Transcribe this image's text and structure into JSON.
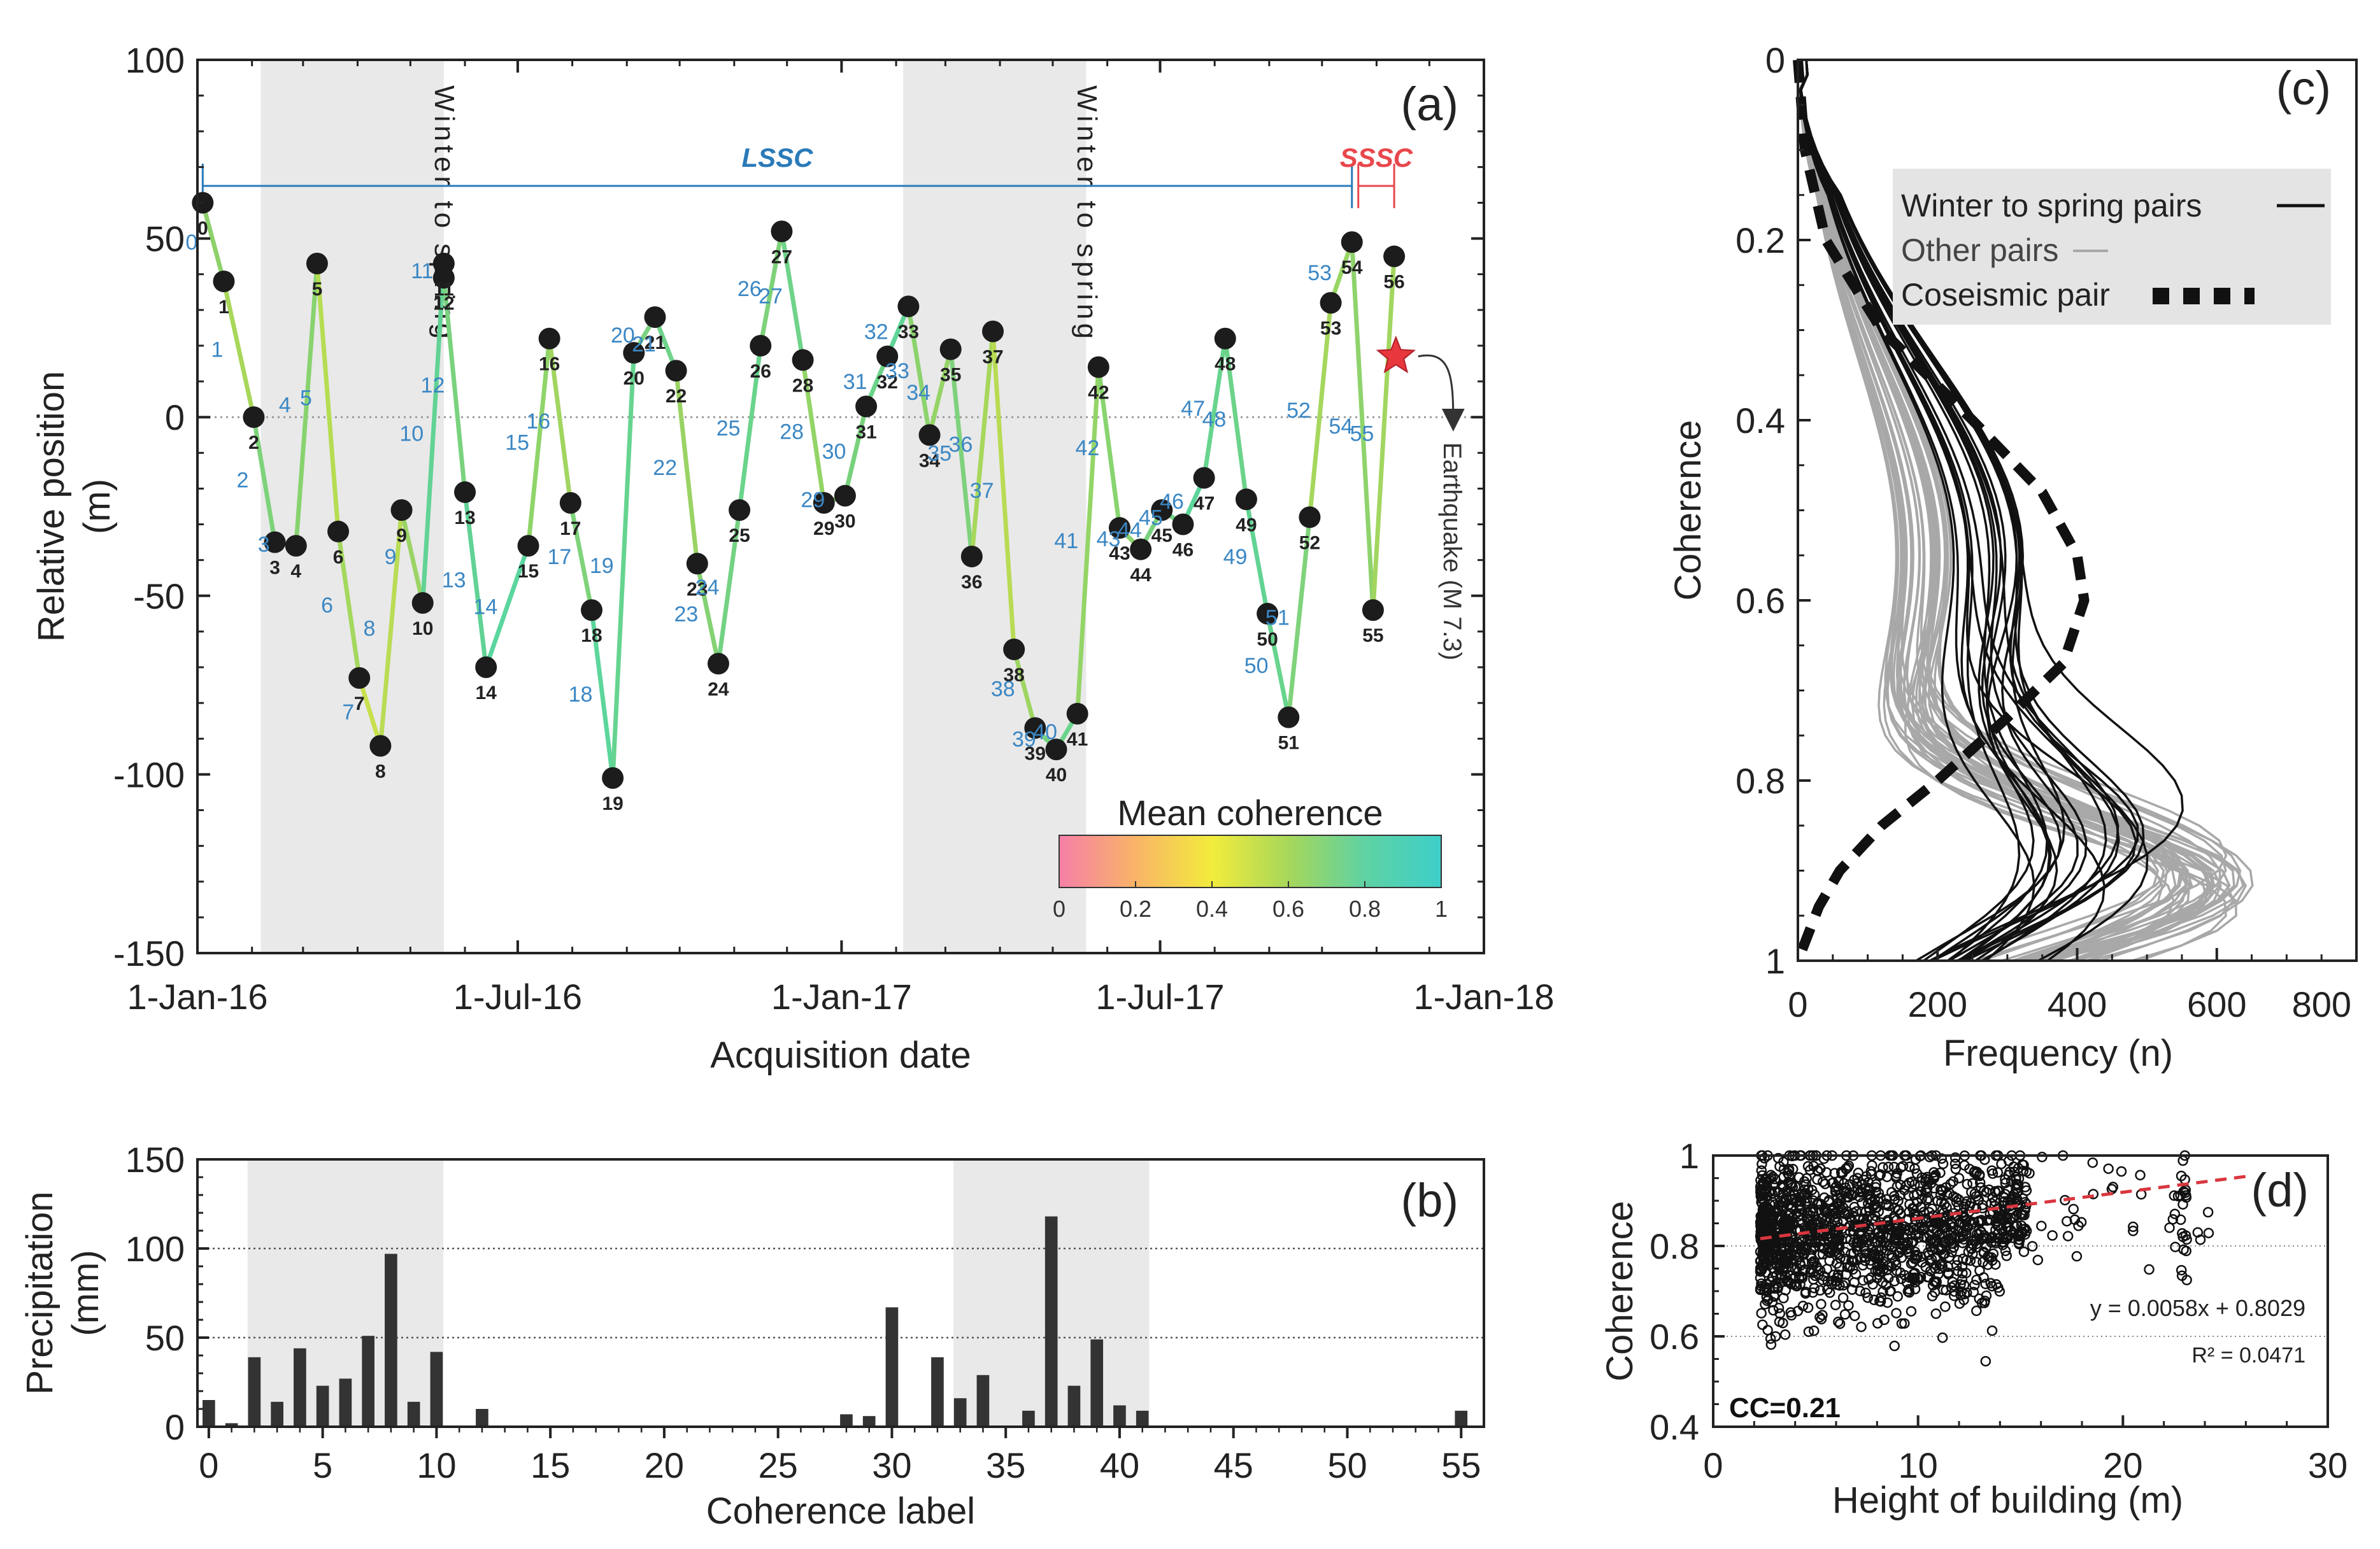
{
  "colors": {
    "winter_shade": "#e9e9e9",
    "lssc": "#2a7ab8",
    "sssc": "#e8474c",
    "label_blue": "#3b87c4",
    "marker": "#1c1c1c",
    "bar": "#333333",
    "other_pairs": "#a8a8a8",
    "regression": "#d9363e",
    "star": "#e8373d"
  },
  "panel_a": {
    "panel_label": "(a)",
    "ylabel": "Relative position\n(m)",
    "xlabel": "Acquisition date",
    "yticks": [
      100,
      50,
      0,
      -50,
      -100,
      -150
    ],
    "ytick_labels": [
      "100",
      "50",
      "0",
      "-50",
      "-100",
      "-150"
    ],
    "xtick_labels": [
      "1-Jan-16",
      "1-Jul-16",
      "1-Jan-17",
      "1-Jul-17",
      "1-Jan-18"
    ],
    "shade_label": "Winter to spring",
    "lssc_label": "LSSC",
    "sssc_label": "SSSC",
    "earthquake_label": "Earthquake (M 7.3)",
    "colorbar_title": "Mean coherence",
    "colorbar_ticks": [
      "0",
      "0.2",
      "0.4",
      "0.6",
      "0.8",
      "1"
    ]
  },
  "panel_b": {
    "panel_label": "(b)",
    "ylabel": "Precipitation\n(mm)",
    "xlabel": "Coherence label",
    "yticks": [
      "150",
      "100",
      "50",
      "0"
    ],
    "xticks": [
      "0",
      "5",
      "10",
      "15",
      "20",
      "25",
      "30",
      "35",
      "40",
      "45",
      "50",
      "55"
    ]
  },
  "panel_c": {
    "panel_label": "(c)",
    "ylabel": "Coherence",
    "xlabel": "Frequency (n)",
    "yticks": [
      "0",
      "0.2",
      "0.4",
      "0.6",
      "0.8",
      "1"
    ],
    "xticks": [
      "0",
      "200",
      "400",
      "600",
      "800"
    ],
    "legend": [
      "Winter to spring pairs",
      "Other pairs",
      "Coseismic pair"
    ]
  },
  "panel_d": {
    "panel_label": "(d)",
    "ylabel": "Coherence",
    "xlabel": "Height of building (m)",
    "yticks": [
      "1",
      "0.8",
      "0.6",
      "0.4"
    ],
    "xticks": [
      "0",
      "10",
      "20",
      "30"
    ],
    "equation": "y = 0.0058x + 0.8029",
    "r2": "R² = 0.0471",
    "cc": "CC=0.21"
  },
  "chart_data": [
    {
      "type": "line",
      "panel": "a",
      "title": "",
      "xlabel": "Acquisition date",
      "ylabel": "Relative position (m)",
      "ylim": [
        -150,
        100
      ],
      "xlim": [
        "2016-01-01",
        "2018-01-01"
      ],
      "shaded_periods": [
        [
          "2016-02-06",
          "2016-05-20"
        ],
        [
          "2017-02-05",
          "2017-05-20"
        ]
      ],
      "points": [
        {
          "label": "0",
          "date": "2016-01-04",
          "y": 60
        },
        {
          "label": "1",
          "date": "2016-01-16",
          "y": 38
        },
        {
          "label": "2",
          "date": "2016-02-02",
          "y": 0
        },
        {
          "label": "3",
          "date": "2016-02-14",
          "y": -35
        },
        {
          "label": "4",
          "date": "2016-02-26",
          "y": -36
        },
        {
          "label": "5",
          "date": "2016-03-09",
          "y": 43
        },
        {
          "label": "6",
          "date": "2016-03-21",
          "y": -32
        },
        {
          "label": "7",
          "date": "2016-04-02",
          "y": -73
        },
        {
          "label": "8",
          "date": "2016-04-14",
          "y": -92
        },
        {
          "label": "9",
          "date": "2016-04-26",
          "y": -26
        },
        {
          "label": "10",
          "date": "2016-05-08",
          "y": -52
        },
        {
          "label": "11",
          "date": "2016-05-20",
          "y": 43
        },
        {
          "label": "12",
          "date": "2016-05-20",
          "y": 39
        },
        {
          "label": "13",
          "date": "2016-06-01",
          "y": -21
        },
        {
          "label": "14",
          "date": "2016-06-13",
          "y": -70
        },
        {
          "label": "15",
          "date": "2016-07-07",
          "y": -36
        },
        {
          "label": "16",
          "date": "2016-07-19",
          "y": 22
        },
        {
          "label": "17",
          "date": "2016-07-31",
          "y": -24
        },
        {
          "label": "18",
          "date": "2016-08-12",
          "y": -54
        },
        {
          "label": "19",
          "date": "2016-08-24",
          "y": -101
        },
        {
          "label": "20",
          "date": "2016-09-05",
          "y": 18
        },
        {
          "label": "21",
          "date": "2016-09-17",
          "y": 28
        },
        {
          "label": "22",
          "date": "2016-09-29",
          "y": 13
        },
        {
          "label": "23",
          "date": "2016-10-11",
          "y": -41
        },
        {
          "label": "24",
          "date": "2016-10-23",
          "y": -69
        },
        {
          "label": "25",
          "date": "2016-11-04",
          "y": -26
        },
        {
          "label": "26",
          "date": "2016-11-16",
          "y": 20
        },
        {
          "label": "27",
          "date": "2016-11-28",
          "y": 52
        },
        {
          "label": "28",
          "date": "2016-12-10",
          "y": 16
        },
        {
          "label": "29",
          "date": "2016-12-22",
          "y": -24
        },
        {
          "label": "30",
          "date": "2017-01-03",
          "y": -22
        },
        {
          "label": "31",
          "date": "2017-01-15",
          "y": 3
        },
        {
          "label": "32",
          "date": "2017-01-27",
          "y": 17
        },
        {
          "label": "33",
          "date": "2017-02-08",
          "y": 31
        },
        {
          "label": "34",
          "date": "2017-02-20",
          "y": -5
        },
        {
          "label": "35",
          "date": "2017-03-04",
          "y": 19
        },
        {
          "label": "36",
          "date": "2017-03-16",
          "y": -39
        },
        {
          "label": "37",
          "date": "2017-03-28",
          "y": 24
        },
        {
          "label": "38",
          "date": "2017-04-09",
          "y": -65
        },
        {
          "label": "39",
          "date": "2017-04-21",
          "y": -87
        },
        {
          "label": "40",
          "date": "2017-05-03",
          "y": -93
        },
        {
          "label": "41",
          "date": "2017-05-15",
          "y": -83
        },
        {
          "label": "42",
          "date": "2017-05-27",
          "y": 14
        },
        {
          "label": "43",
          "date": "2017-06-08",
          "y": -31
        },
        {
          "label": "44",
          "date": "2017-06-20",
          "y": -37
        },
        {
          "label": "45",
          "date": "2017-07-02",
          "y": -26
        },
        {
          "label": "46",
          "date": "2017-07-14",
          "y": -30
        },
        {
          "label": "47",
          "date": "2017-07-26",
          "y": -17
        },
        {
          "label": "48",
          "date": "2017-08-07",
          "y": 22
        },
        {
          "label": "49",
          "date": "2017-08-19",
          "y": -23
        },
        {
          "label": "50",
          "date": "2017-08-31",
          "y": -55
        },
        {
          "label": "51",
          "date": "2017-09-12",
          "y": -84
        },
        {
          "label": "52",
          "date": "2017-09-24",
          "y": -28
        },
        {
          "label": "53",
          "date": "2017-10-06",
          "y": 32
        },
        {
          "label": "54",
          "date": "2017-10-18",
          "y": 49
        },
        {
          "label": "55",
          "date": "2017-10-30",
          "y": -54
        },
        {
          "label": "56",
          "date": "2017-11-11",
          "y": 45
        }
      ],
      "mean_coherence_colorbar": [
        0,
        1
      ],
      "earthquake_date": "2017-11-12",
      "lssc_range": [
        "2016-01-04",
        "2017-10-18"
      ],
      "sssc_range": [
        "2017-10-18",
        "2017-11-11"
      ]
    },
    {
      "type": "bar",
      "panel": "b",
      "xlabel": "Coherence label",
      "ylabel": "Precipitation (mm)",
      "ylim": [
        0,
        150
      ],
      "xlim": [
        -0.5,
        56
      ],
      "gridlines_y": [
        50,
        100
      ],
      "shaded_ranges": [
        [
          1.7,
          10.3
        ],
        [
          32.7,
          41.3
        ]
      ],
      "categories": [
        0,
        1,
        2,
        3,
        4,
        5,
        6,
        7,
        8,
        9,
        10,
        12,
        28,
        29,
        30,
        32,
        33,
        34,
        36,
        37,
        38,
        39,
        40,
        41,
        55
      ],
      "values": [
        15,
        2,
        39,
        14,
        44,
        23,
        27,
        51,
        97,
        14,
        42,
        10,
        7,
        6,
        67,
        39,
        16,
        29,
        9,
        118,
        23,
        49,
        12,
        9,
        9
      ]
    },
    {
      "type": "line",
      "panel": "c",
      "xlabel": "Frequency (n)",
      "ylabel": "Coherence",
      "xlim": [
        0,
        800
      ],
      "ylim": [
        0,
        1
      ],
      "y_inverted": true,
      "series": [
        {
          "name": "Winter to spring pairs",
          "note": "~20 histogram curves, peak near coherence 0.92"
        },
        {
          "name": "Other pairs",
          "note": "~35 histogram curves, peak frequency ~450-600 near coherence 0.93"
        },
        {
          "name": "Coseismic pair",
          "x": [
            0,
            10,
            40,
            120,
            250,
            350,
            400,
            410,
            380,
            300,
            200,
            120,
            60,
            30,
            0
          ],
          "y": [
            0,
            0.1,
            0.2,
            0.3,
            0.4,
            0.48,
            0.55,
            0.6,
            0.67,
            0.73,
            0.8,
            0.85,
            0.9,
            0.94,
            1
          ]
        }
      ]
    },
    {
      "type": "scatter",
      "panel": "d",
      "xlabel": "Height of building (m)",
      "ylabel": "Coherence",
      "xlim": [
        0,
        30
      ],
      "ylim": [
        0.4,
        1
      ],
      "gridlines_y": [
        0.6,
        0.8
      ],
      "regression": {
        "slope": 0.0058,
        "intercept": 0.8029,
        "r2": 0.0471
      },
      "cc": 0.21,
      "note": "dense open-circle scatter, heights ~2-26 m, coherence ~0.52-1"
    }
  ]
}
